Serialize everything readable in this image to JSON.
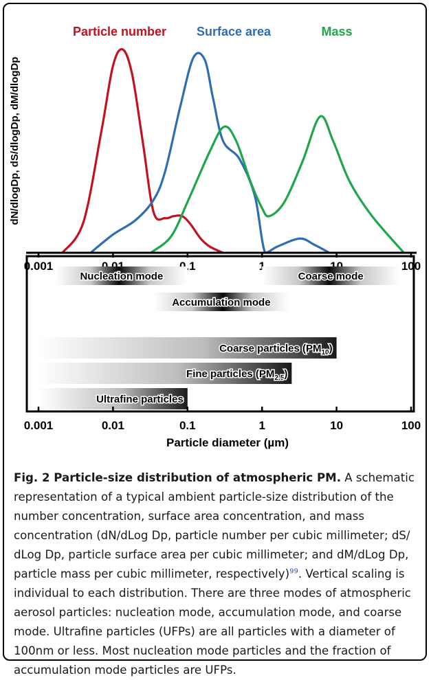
{
  "chart_data": [
    {
      "type": "line",
      "x_scale": "log",
      "xlim": [
        0.001,
        100
      ],
      "x_ticks": [
        "0.001",
        "0.01",
        "0.1",
        "1",
        "10",
        "100"
      ],
      "ylabel": "dN/dlogDp, dS/dlogDp, dM/dlogDp",
      "y_scale_note": "arbitrary, individual per distribution",
      "legend": "top, inline above curves",
      "series": [
        {
          "name": "Particle number",
          "color": "#c1121f",
          "x": [
            0.0021,
            0.004,
            0.007,
            0.01,
            0.0135,
            0.018,
            0.025,
            0.035,
            0.05,
            0.065,
            0.085,
            0.11,
            0.15,
            0.2,
            0.3
          ],
          "y": [
            0,
            0.15,
            0.6,
            0.92,
            1.0,
            0.88,
            0.55,
            0.2,
            0.17,
            0.18,
            0.18,
            0.14,
            0.07,
            0.03,
            0
          ]
        },
        {
          "name": "Surface area",
          "color": "#2e6db4",
          "x": [
            0.005,
            0.01,
            0.02,
            0.035,
            0.05,
            0.08,
            0.12,
            0.17,
            0.22,
            0.3,
            0.5,
            0.8,
            1.1,
            1.6,
            3.2,
            5,
            8
          ],
          "y": [
            0,
            0.09,
            0.16,
            0.26,
            0.4,
            0.72,
            0.96,
            0.95,
            0.76,
            0.55,
            0.46,
            0.28,
            0,
            0.03,
            0.07,
            0.04,
            0
          ]
        },
        {
          "name": "Mass",
          "color": "#1fa64a",
          "x": [
            0.032,
            0.06,
            0.1,
            0.2,
            0.31,
            0.45,
            0.7,
            1.0,
            1.25,
            2,
            3.5,
            6,
            9,
            15,
            30,
            80
          ],
          "y": [
            0,
            0.08,
            0.25,
            0.5,
            0.62,
            0.55,
            0.35,
            0.22,
            0.18,
            0.25,
            0.45,
            0.67,
            0.55,
            0.35,
            0.18,
            0
          ]
        }
      ]
    },
    {
      "type": "bar",
      "orientation": "horizontal range",
      "x_scale": "log",
      "xlim": [
        0.001,
        100
      ],
      "x_ticks": [
        "0.001",
        "0.01",
        "0.1",
        "1",
        "10",
        "100"
      ],
      "xlabel": "Particle diameter (µm)",
      "modes": [
        {
          "label": "Nucleation mode",
          "range": [
            0.0017,
            0.1
          ],
          "peak": 0.012
        },
        {
          "label": "Accumulation mode",
          "range": [
            0.035,
            2.3
          ],
          "peak": 0.3
        },
        {
          "label": "Coarse mode",
          "range": [
            1.0,
            70
          ],
          "peak": 8
        }
      ],
      "particles": [
        {
          "label": "Coarse particles (PM",
          "sub": "10",
          "suffix": ")",
          "range": [
            0.001,
            10
          ]
        },
        {
          "label": "Fine particles (PM",
          "sub": "2.5",
          "suffix": ")",
          "range": [
            0.001,
            2.5
          ]
        },
        {
          "label": "Ultrafine particles",
          "sub": "",
          "suffix": "",
          "range": [
            0.001,
            0.1
          ]
        }
      ]
    }
  ],
  "caption": {
    "title": "Fig. 2 Particle-size distribution of atmospheric PM.",
    "text_before_ref": " A schematic representation of a typical ambient particle-size distribution of the number concentration, surface area concentration, and mass concentration (dN/dLog Dp, particle number per cubic millimeter; dS/ dLog Dp, particle surface area per cubic millimeter; and dM/dLog Dp, particle mass per cubic millimeter, respectively)",
    "ref": "99",
    "text_after_ref": ". Vertical scaling is individual to each distribution. There are three modes of atmospheric aerosol particles: nucleation mode, accumulation mode, and coarse mode. Ultrafine particles (UFPs) are all particles with a diameter of 100nm or less. Most nucleation mode particles and the fraction of accumulation mode particles are UFPs."
  }
}
